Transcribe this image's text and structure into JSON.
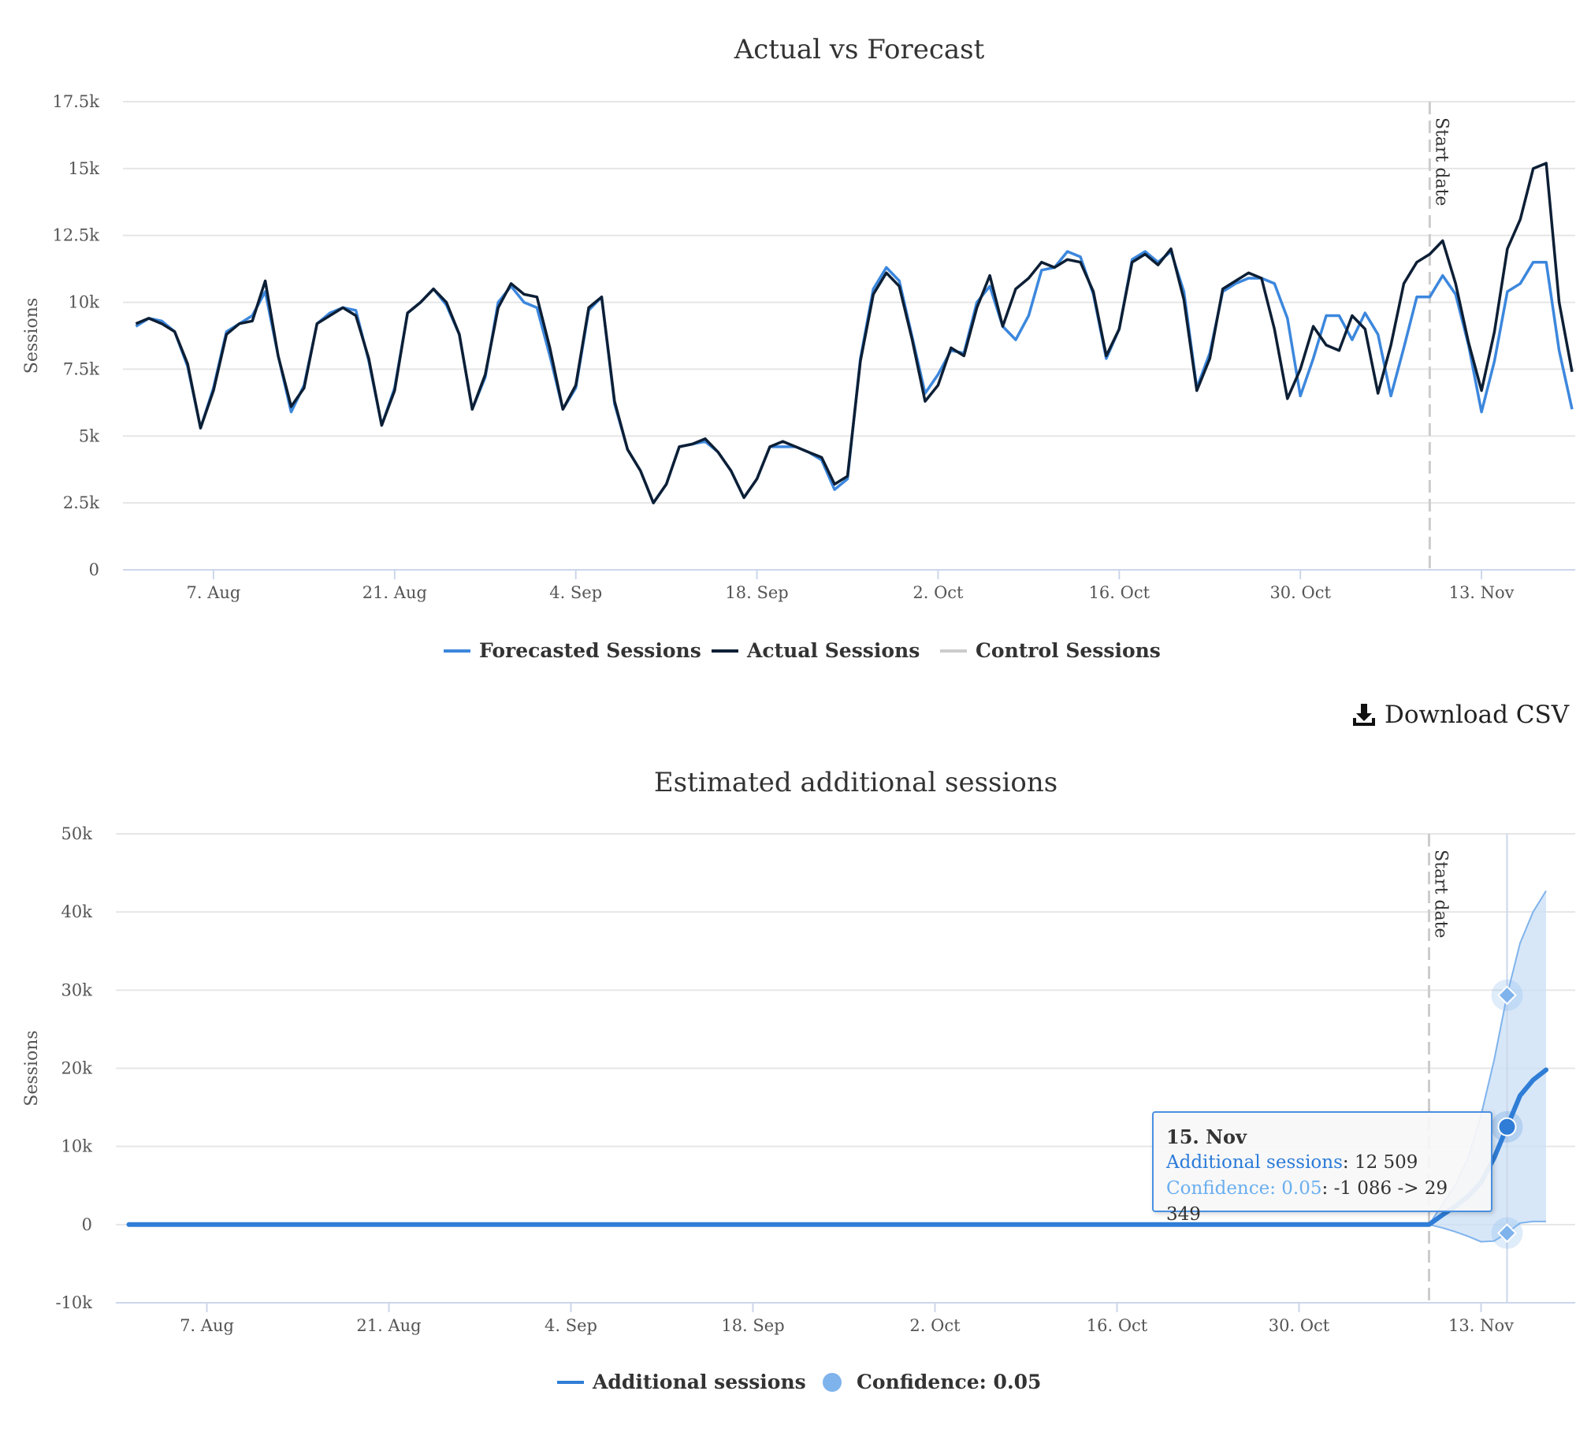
{
  "download": {
    "label": "Download CSV",
    "icon": "download-icon"
  },
  "tooltip": {
    "date": "15. Nov",
    "series_label": "Additional sessions",
    "series_value": ": 12 509",
    "conf_label": "Confidence: 0.05",
    "conf_value": ": -1 086 -> 29 349"
  },
  "colors": {
    "forecast": "#3c87dd",
    "actual": "#0d1f35",
    "control": "#cccccc",
    "additional": "#2f7dd6",
    "confidence_fill": "#c9dff6",
    "confidence_line": "#7fb3ec"
  },
  "chart_data": [
    {
      "type": "line",
      "title": "Actual vs Forecast",
      "ylabel": "Sessions",
      "xlabel": "",
      "x_start": "2023-07-31",
      "x_end": "2023-11-20",
      "x_tick_labels": [
        "7. Aug",
        "21. Aug",
        "4. Sep",
        "18. Sep",
        "2. Oct",
        "16. Oct",
        "30. Oct",
        "13. Nov"
      ],
      "x_tick_dates": [
        "2023-08-07",
        "2023-08-21",
        "2023-09-04",
        "2023-09-18",
        "2023-10-02",
        "2023-10-16",
        "2023-10-30",
        "2023-11-13"
      ],
      "ylim": [
        0,
        17500
      ],
      "y_ticks": [
        0,
        2500,
        5000,
        7500,
        10000,
        12500,
        15000,
        17500
      ],
      "y_tick_labels": [
        "0",
        "2.5k",
        "5k",
        "7.5k",
        "10k",
        "12.5k",
        "15k",
        "17.5k"
      ],
      "grid": true,
      "legend_position": "bottom-center",
      "start_date": {
        "date": "2023-11-09",
        "label": "Start date"
      },
      "x_first": "2023-08-01",
      "series": [
        {
          "name": "Forecasted Sessions",
          "color": "#3c87dd",
          "values": [
            9100,
            9400,
            9300,
            8900,
            7600,
            5300,
            6800,
            8900,
            9200,
            9500,
            10400,
            8000,
            5900,
            6900,
            9200,
            9600,
            9800,
            9700,
            7800,
            5400,
            6800,
            9600,
            10000,
            10500,
            9900,
            8800,
            6000,
            7200,
            10000,
            10600,
            10000,
            9800,
            8000,
            6000,
            6800,
            9700,
            10200,
            6200,
            4500,
            3700,
            2500,
            3200,
            4600,
            4700,
            4800,
            4400,
            3700,
            2700,
            3400,
            4600,
            4600,
            4600,
            4400,
            4100,
            3000,
            3400,
            7900,
            10500,
            11300,
            10800,
            8700,
            6600,
            7300,
            8200,
            8100,
            10000,
            10600,
            9100,
            8600,
            9500,
            11200,
            11300,
            11900,
            11700,
            10300,
            7900,
            9000,
            11600,
            11900,
            11500,
            11900,
            10400,
            6800,
            8100,
            10400,
            10700,
            10900,
            10900,
            10700,
            9400,
            6500,
            7900,
            9500,
            9500,
            8600,
            9600,
            8800,
            6500,
            8300,
            10200,
            10200,
            11000,
            10300,
            8400,
            5900,
            7800,
            10400,
            10700,
            11500,
            11500,
            8200,
            6000
          ]
        },
        {
          "name": "Actual Sessions",
          "color": "#0d1f35",
          "values": [
            9200,
            9400,
            9200,
            8900,
            7700,
            5300,
            6700,
            8800,
            9200,
            9300,
            10800,
            8000,
            6100,
            6800,
            9200,
            9500,
            9800,
            9500,
            7900,
            5400,
            6700,
            9600,
            10000,
            10500,
            10000,
            8800,
            6000,
            7300,
            9800,
            10700,
            10300,
            10200,
            8300,
            6000,
            6900,
            9800,
            10200,
            6300,
            4500,
            3700,
            2500,
            3200,
            4600,
            4700,
            4900,
            4400,
            3700,
            2700,
            3400,
            4600,
            4800,
            4600,
            4400,
            4200,
            3200,
            3500,
            7800,
            10300,
            11100,
            10600,
            8600,
            6300,
            6900,
            8300,
            8000,
            9800,
            11000,
            9100,
            10500,
            10900,
            11500,
            11300,
            11600,
            11500,
            10400,
            8000,
            9000,
            11500,
            11800,
            11400,
            12000,
            10100,
            6700,
            7900,
            10500,
            10800,
            11100,
            10900,
            9000,
            6400,
            7500,
            9100,
            8400,
            8200,
            9500,
            9000,
            6600,
            8400,
            10700,
            11500,
            11800,
            12300,
            10700,
            8500,
            6700,
            8900,
            12000,
            13100,
            15000,
            15200,
            10000,
            7400
          ]
        },
        {
          "name": "Control Sessions",
          "color": "#cccccc",
          "values": []
        }
      ]
    },
    {
      "type": "area",
      "title": "Estimated additional sessions",
      "ylabel": "Sessions",
      "xlabel": "",
      "x_start": "2023-07-31",
      "x_end": "2023-11-20",
      "x_tick_labels": [
        "7. Aug",
        "21. Aug",
        "4. Sep",
        "18. Sep",
        "2. Oct",
        "16. Oct",
        "30. Oct",
        "13. Nov"
      ],
      "x_tick_dates": [
        "2023-08-07",
        "2023-08-21",
        "2023-09-04",
        "2023-09-18",
        "2023-10-02",
        "2023-10-16",
        "2023-10-30",
        "2023-11-13"
      ],
      "ylim": [
        -10000,
        50000
      ],
      "y_ticks": [
        -10000,
        0,
        10000,
        20000,
        30000,
        40000,
        50000
      ],
      "y_tick_labels": [
        "-10k",
        "0",
        "10k",
        "20k",
        "30k",
        "40k",
        "50k"
      ],
      "grid": true,
      "legend_position": "bottom-center",
      "start_date": {
        "date": "2023-11-09",
        "label": "Start date"
      },
      "series": [
        {
          "name": "Additional sessions",
          "color": "#2f7dd6",
          "segments": [
            {
              "from": "2023-08-01",
              "to": "2023-11-09",
              "value": 0
            }
          ],
          "points": [
            {
              "date": "2023-11-09",
              "value": 0
            },
            {
              "date": "2023-11-10",
              "value": 1200
            },
            {
              "date": "2023-11-11",
              "value": 2300
            },
            {
              "date": "2023-11-12",
              "value": 3600
            },
            {
              "date": "2023-11-13",
              "value": 5400
            },
            {
              "date": "2023-11-14",
              "value": 8500
            },
            {
              "date": "2023-11-15",
              "value": 12509
            },
            {
              "date": "2023-11-16",
              "value": 16500
            },
            {
              "date": "2023-11-17",
              "value": 18500
            },
            {
              "date": "2023-11-18",
              "value": 19800
            }
          ]
        },
        {
          "name": "Confidence: 0.05",
          "color": "#7fb3ec",
          "type": "arearange",
          "points": [
            {
              "date": "2023-11-09",
              "low": 0,
              "high": 0
            },
            {
              "date": "2023-11-10",
              "low": -400,
              "high": 2500
            },
            {
              "date": "2023-11-11",
              "low": -900,
              "high": 5000
            },
            {
              "date": "2023-11-12",
              "low": -1500,
              "high": 8500
            },
            {
              "date": "2023-11-13",
              "low": -2200,
              "high": 14000
            },
            {
              "date": "2023-11-14",
              "low": -2100,
              "high": 21000
            },
            {
              "date": "2023-11-15",
              "low": -1086,
              "high": 29349
            },
            {
              "date": "2023-11-16",
              "low": 200,
              "high": 36000
            },
            {
              "date": "2023-11-17",
              "low": 400,
              "high": 40000
            },
            {
              "date": "2023-11-18",
              "low": 400,
              "high": 42700
            }
          ]
        }
      ],
      "highlight": {
        "date": "2023-11-15",
        "value": 12509,
        "low": -1086,
        "high": 29349
      }
    }
  ]
}
